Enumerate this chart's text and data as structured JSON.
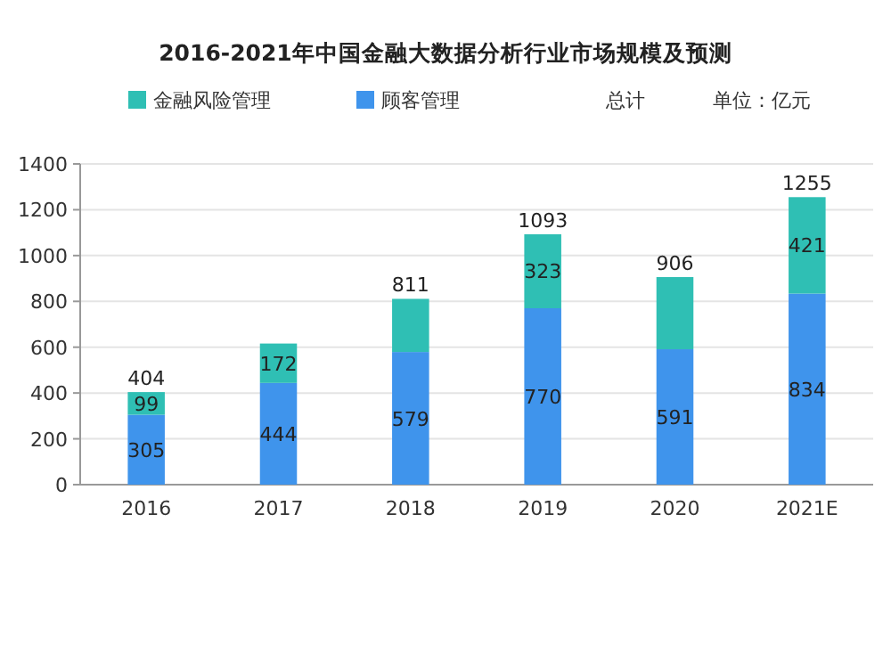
{
  "chart_data": {
    "type": "bar",
    "title": "2016-2021年中国金融大数据分析行业市场规模及预测",
    "stacked": true,
    "categories": [
      "2016",
      "2017",
      "2018",
      "2019",
      "2020",
      "2021E"
    ],
    "series": [
      {
        "name": "顾客管理",
        "color": "#3f94ec",
        "values": [
          305,
          444,
          579,
          770,
          591,
          834
        ],
        "value_labels": [
          "305",
          "444",
          "579",
          "770",
          "591",
          "834"
        ]
      },
      {
        "name": "金融风险管理",
        "color": "#2fbfb4",
        "values": [
          99,
          172,
          232,
          323,
          315,
          421
        ],
        "value_labels": [
          "99",
          "172",
          null,
          "323",
          null,
          "421"
        ]
      }
    ],
    "totals": [
      "404",
      null,
      "811",
      "1093",
      "906",
      "1255"
    ],
    "ylim": [
      0,
      1400
    ],
    "yticks": [
      0,
      200,
      400,
      600,
      800,
      1000,
      1200,
      1400
    ],
    "grid": "y",
    "legend": "top left",
    "annotations": [
      "总计",
      "单位：亿元"
    ]
  }
}
